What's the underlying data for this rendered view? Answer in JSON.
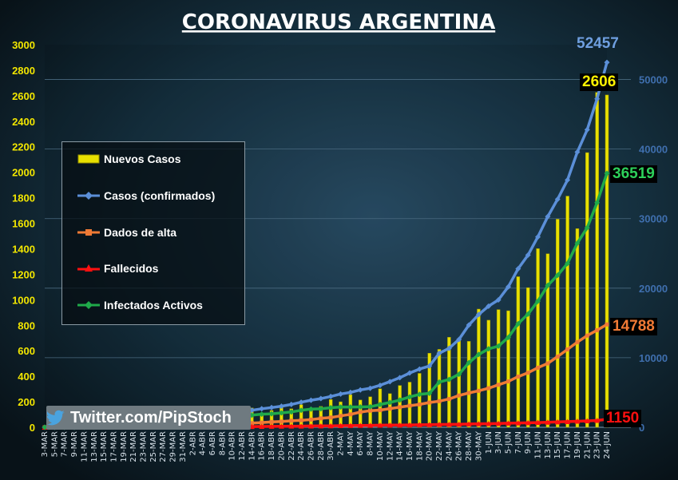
{
  "title": "CORONAVIRUS ARGENTINA",
  "credit": "Twitter.com/PipStoch",
  "legend": [
    {
      "label": "Nuevos Casos",
      "color": "#e8e000",
      "icon": "bar-swatch"
    },
    {
      "label": "Casos (confirmados)",
      "color": "#5b8fd8",
      "icon": "diamond-line"
    },
    {
      "label": "Dados de alta",
      "color": "#f07a35",
      "icon": "square-line"
    },
    {
      "label": "Fallecidos",
      "color": "#ff1010",
      "icon": "triangle-line"
    },
    {
      "label": "Infectados Activos",
      "color": "#1faa4a",
      "icon": "diamond-line"
    }
  ],
  "callouts": {
    "confirmed": {
      "text": "52457",
      "color": "#6f9fe0"
    },
    "new_cases": {
      "text": "2606",
      "color": "#fff200",
      "bg": "#000000"
    },
    "active": {
      "text": "36519",
      "color": "#2dd05a",
      "bg": "#000000"
    },
    "recovered": {
      "text": "14788",
      "color": "#f07a35",
      "bg": "#000000"
    },
    "deaths": {
      "text": "1150",
      "color": "#ff1010",
      "bg": "#000000"
    }
  },
  "chart_data": {
    "type": "bar",
    "title": "CORONAVIRUS ARGENTINA",
    "x_labels": [
      "3-MAR",
      "5-MAR",
      "7-MAR",
      "9-MAR",
      "11-MAR",
      "13-MAR",
      "15-MAR",
      "17-MAR",
      "19-MAR",
      "21-MAR",
      "23-MAR",
      "25-MAR",
      "27-MAR",
      "29-MAR",
      "31-MAR",
      "2-ABR",
      "4-ABR",
      "6-ABR",
      "8-ABR",
      "10-ABR",
      "12-ABR",
      "14-ABR",
      "16-ABR",
      "18-ABR",
      "20-ABR",
      "22-ABR",
      "24-ABR",
      "26-ABR",
      "28-ABR",
      "30-ABR",
      "2-MAY",
      "4-MAY",
      "6-MAY",
      "8-MAY",
      "10-MAY",
      "12-MAY",
      "14-MAY",
      "16-MAY",
      "18-MAY",
      "20-MAY",
      "22-MAY",
      "24-MAY",
      "26-MAY",
      "28-MAY",
      "30-MAY",
      "1-JUN",
      "3-JUN",
      "5-JUN",
      "7-JUN",
      "9-JUN",
      "11-JUN",
      "13-JUN",
      "15-JUN",
      "17-JUN",
      "19-JUN",
      "21-JUN",
      "23-JUN",
      "24-JUN"
    ],
    "left_axis": {
      "min": 0,
      "max": 3000,
      "ticks": [
        0,
        200,
        400,
        600,
        800,
        1000,
        1200,
        1400,
        1600,
        1800,
        2000,
        2200,
        2400,
        2600,
        2800,
        3000
      ]
    },
    "right_axis": {
      "min": 0,
      "max": 55000,
      "ticks": [
        0,
        10000,
        20000,
        30000,
        40000,
        50000
      ]
    },
    "grid": true,
    "legend_position": "left",
    "series": [
      {
        "name": "Nuevos Casos",
        "type": "bar",
        "axis": "left",
        "color": "#e8e000",
        "values": [
          1,
          2,
          1,
          2,
          5,
          8,
          11,
          7,
          30,
          30,
          41,
          86,
          101,
          55,
          146,
          95,
          98,
          93,
          81,
          100,
          106,
          65,
          127,
          87,
          150,
          144,
          162,
          112,
          123,
          158,
          165,
          103,
          240,
          183,
          245,
          250,
          330,
          340,
          322,
          475,
          702,
          731,
          662,
          622,
          795,
          904,
          970,
          1035,
          853,
          1212,
          1386,
          1539,
          1374,
          1958,
          2060,
          1581,
          2255,
          2606
        ],
        "values_2": [
          0,
          3,
          1,
          5,
          12,
          9,
          10,
          20,
          21,
          37,
          64,
          81,
          78,
          52,
          88,
          98,
          112,
          118,
          124,
          112,
          121,
          152,
          98,
          132,
          163,
          145,
          178,
          137,
          164,
          218,
          200,
          256,
          214,
          239,
          302,
          264,
          328,
          354,
          423,
          581,
          611,
          706,
          686,
          674,
          927,
          840,
          923,
          914,
          1181,
          1095,
          1401,
          1361,
          1632,
          1813,
          1558,
          2154,
          2626,
          2606
        ]
      },
      {
        "name": "Casos (confirmados)",
        "type": "line",
        "axis": "right",
        "color": "#5b8fd8",
        "values": [
          1,
          2,
          2,
          7,
          19,
          31,
          56,
          79,
          128,
          225,
          301,
          502,
          690,
          820,
          1054,
          1265,
          1451,
          1628,
          1795,
          1975,
          2142,
          2443,
          2669,
          2839,
          3031,
          3288,
          3607,
          3892,
          4127,
          4428,
          4783,
          5020,
          5371,
          5611,
          6034,
          6563,
          7134,
          7805,
          8371,
          8809,
          10649,
          11353,
          12628,
          14702,
          16214,
          17415,
          18319,
          20197,
          22794,
          24761,
          27373,
          30295,
          32785,
          35552,
          39570,
          42785,
          47216,
          52457
        ]
      },
      {
        "name": "Dados de alta",
        "type": "line",
        "axis": "right",
        "color": "#f07a35",
        "values": [
          0,
          0,
          0,
          0,
          0,
          0,
          0,
          2,
          5,
          25,
          52,
          72,
          97,
          150,
          248,
          280,
          325,
          357,
          406,
          471,
          541,
          598,
          673,
          767,
          829,
          935,
          1001,
          1106,
          1284,
          1405,
          1643,
          1858,
          2183,
          2385,
          2469,
          2684,
          2897,
          3100,
          3286,
          3555,
          3751,
          4064,
          4568,
          4943,
          5242,
          5616,
          6109,
          6592,
          7284,
          7842,
          8564,
          9183,
          10165,
          11193,
          12238,
          13177,
          13948,
          14788
        ]
      },
      {
        "name": "Fallecidos",
        "type": "line",
        "axis": "right",
        "color": "#ff1010",
        "values": [
          0,
          0,
          0,
          0,
          0,
          0,
          2,
          3,
          3,
          4,
          6,
          12,
          17,
          22,
          27,
          36,
          48,
          60,
          72,
          82,
          92,
          102,
          115,
          129,
          137,
          151,
          165,
          179,
          192,
          208,
          228,
          246,
          260,
          273,
          293,
          307,
          319,
          336,
          353,
          374,
          403,
          416,
          433,
          472,
          500,
          520,
          548,
          591,
          622,
          648,
          683,
          717,
          765,
          810,
          861,
          913,
          979,
          1150
        ]
      },
      {
        "name": "Infectados Activos",
        "type": "line",
        "axis": "right",
        "color": "#1faa4a",
        "values": [
          1,
          2,
          2,
          7,
          19,
          31,
          54,
          74,
          120,
          196,
          243,
          418,
          576,
          648,
          779,
          949,
          1078,
          1211,
          1317,
          1422,
          1509,
          1743,
          1881,
          1943,
          2065,
          2202,
          2441,
          2607,
          2651,
          2815,
          2912,
          2916,
          2928,
          2953,
          3272,
          3572,
          3918,
          4369,
          4732,
          4880,
          6495,
          6873,
          7627,
          9287,
          10472,
          11279,
          11662,
          12914,
          14888,
          16271,
          18126,
          20395,
          21855,
          23549,
          26471,
          28695,
          32289,
          36519
        ]
      }
    ]
  }
}
